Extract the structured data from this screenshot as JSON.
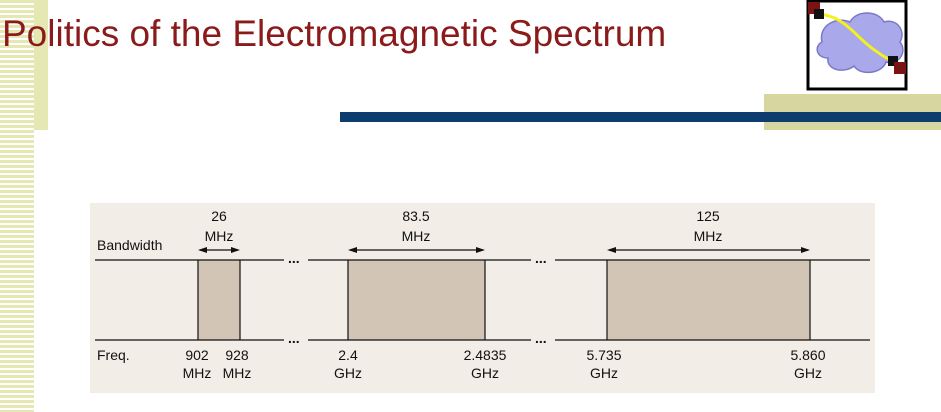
{
  "slide": {
    "title": "Politics of the Electromagnetic Spectrum"
  },
  "figure": {
    "row_labels": {
      "bandwidth": "Bandwidth",
      "freq": "Freq."
    },
    "ellipsis": "...",
    "bands": [
      {
        "bandwidth_value": "26",
        "bandwidth_unit": "MHz",
        "low_value": "902",
        "low_unit": "MHz",
        "high_value": "928",
        "high_unit": "MHz"
      },
      {
        "bandwidth_value": "83.5",
        "bandwidth_unit": "MHz",
        "low_value": "2.4",
        "low_unit": "GHz",
        "high_value": "2.4835",
        "high_unit": "GHz"
      },
      {
        "bandwidth_value": "125",
        "bandwidth_unit": "MHz",
        "low_value": "5.735",
        "low_unit": "GHz",
        "high_value": "5.860",
        "high_unit": "GHz"
      }
    ]
  },
  "colors": {
    "title": "#8b1a1a",
    "band_fill": "#d3c5b6",
    "panel": "#f2ede6",
    "navy_bar": "#0d3d6e",
    "accent": "#d8d6a0"
  }
}
